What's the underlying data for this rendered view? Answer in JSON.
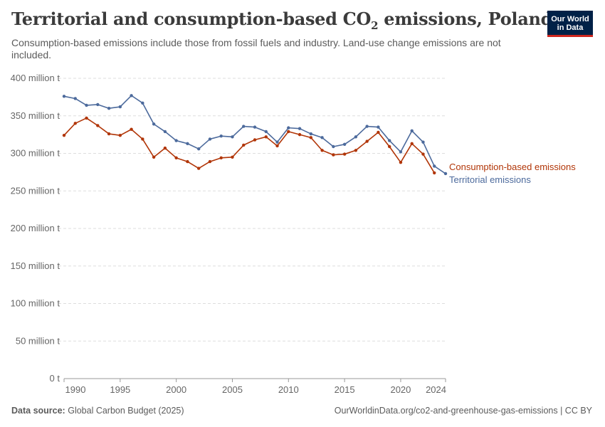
{
  "header": {
    "title_main": "Territorial and consumption-based CO",
    "title_sub": "2",
    "title_tail": " emissions, Poland",
    "subtitle": "Consumption-based emissions include those from fossil fuels and industry. Land-use change emissions are not included.",
    "logo_line1": "Our World",
    "logo_line2": "in Data"
  },
  "footer": {
    "source_label": "Data source:",
    "source_value": "Global Carbon Budget (2025)",
    "url": "OurWorldinData.org/co2-and-greenhouse-gas-emissions | CC BY"
  },
  "colors": {
    "consumption": "#b13507",
    "territorial": "#4c6a9c"
  },
  "chart_data": {
    "type": "line",
    "title": "Territorial and consumption-based CO₂ emissions, Poland",
    "ylim": [
      0,
      400
    ],
    "xlim": [
      1990,
      2024
    ],
    "y_ticks": [
      0,
      50,
      100,
      150,
      200,
      250,
      300,
      350,
      400
    ],
    "y_tick_labels": [
      "0 t",
      "50 million t",
      "100 million t",
      "150 million t",
      "200 million t",
      "250 million t",
      "300 million t",
      "350 million t",
      "400 million t"
    ],
    "x_ticks": [
      1990,
      1995,
      2000,
      2005,
      2010,
      2015,
      2020,
      2024
    ],
    "x_tick_labels": [
      "1990",
      "1995",
      "2000",
      "2005",
      "2010",
      "2015",
      "2020",
      "2024"
    ],
    "grid": true,
    "legend": "inline-right",
    "series": [
      {
        "name": "Territorial emissions",
        "color": "#4c6a9c",
        "x": [
          1990,
          1991,
          1992,
          1993,
          1994,
          1995,
          1996,
          1997,
          1998,
          1999,
          2000,
          2001,
          2002,
          2003,
          2004,
          2005,
          2006,
          2007,
          2008,
          2009,
          2010,
          2011,
          2012,
          2013,
          2014,
          2015,
          2016,
          2017,
          2018,
          2019,
          2020,
          2021,
          2022,
          2023,
          2024
        ],
        "values": [
          376,
          373,
          364,
          365,
          360,
          362,
          377,
          367,
          339,
          329,
          317,
          313,
          306,
          319,
          323,
          322,
          336,
          335,
          329,
          315,
          334,
          333,
          326,
          321,
          309,
          312,
          322,
          336,
          335,
          317,
          302,
          330,
          315,
          283,
          273
        ]
      },
      {
        "name": "Consumption-based emissions",
        "color": "#b13507",
        "x": [
          1990,
          1991,
          1992,
          1993,
          1994,
          1995,
          1996,
          1997,
          1998,
          1999,
          2000,
          2001,
          2002,
          2003,
          2004,
          2005,
          2006,
          2007,
          2008,
          2009,
          2010,
          2011,
          2012,
          2013,
          2014,
          2015,
          2016,
          2017,
          2018,
          2019,
          2020,
          2021,
          2022,
          2023
        ],
        "values": [
          324,
          340,
          347,
          337,
          326,
          324,
          332,
          319,
          295,
          307,
          294,
          289,
          280,
          289,
          294,
          295,
          311,
          318,
          322,
          310,
          329,
          325,
          321,
          304,
          298,
          299,
          304,
          316,
          328,
          309,
          288,
          313,
          299,
          274
        ]
      }
    ]
  }
}
